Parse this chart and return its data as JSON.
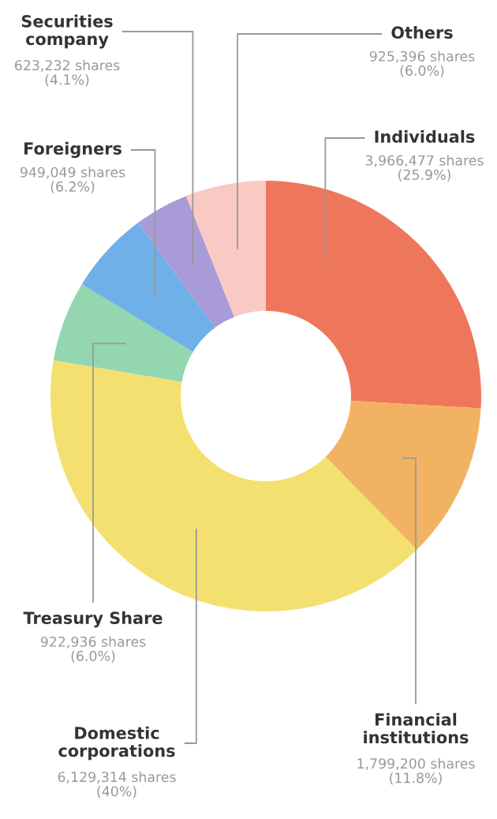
{
  "chart_data": {
    "type": "donut",
    "categories": [
      "Individuals",
      "Financial\ninstitutions",
      "Domestic\ncorporations",
      "Treasury Share",
      "Foreigners",
      "Securities\ncompany",
      "Others"
    ],
    "values": [
      3966477,
      1799200,
      6129314,
      922936,
      949049,
      623232,
      925396
    ],
    "value_labels": [
      "3,966,477 shares\n(25.9%)",
      "1,799,200 shares\n(11.8%)",
      "6,129,314 shares\n(40%)",
      "922,936 shares\n(6.0%)",
      "949,049 shares\n(6.2%)",
      "623,232 shares\n(4.1%)",
      "925,396 shares\n(6.0%)"
    ],
    "colors": [
      "#ee775b",
      "#f2b263",
      "#f4e070",
      "#93d6b0",
      "#6fb0e8",
      "#a99ad8",
      "#f9c9c4"
    ]
  }
}
